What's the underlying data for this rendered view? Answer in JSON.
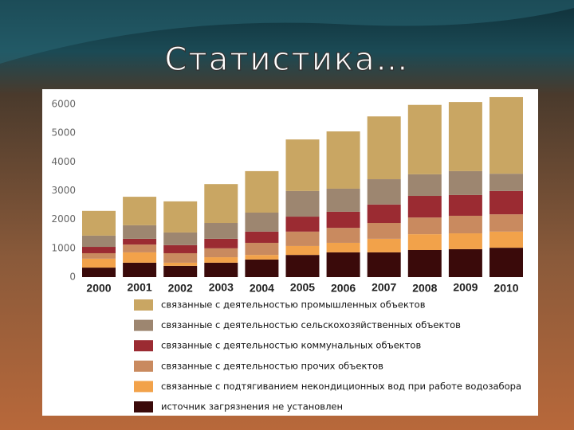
{
  "chart_data": {
    "type": "stacked-bar",
    "title": "Статистика…",
    "categories": [
      "2000",
      "2001",
      "2002",
      "2003",
      "2004",
      "2005",
      "2006",
      "2007",
      "2008",
      "2009",
      "2010"
    ],
    "series": [
      {
        "name": "связанные с деятельностью промышленных объектов",
        "color": "#c9a663",
        "values": [
          860,
          990,
          1080,
          1350,
          1440,
          1790,
          1990,
          2180,
          2410,
          2400,
          2660
        ]
      },
      {
        "name": "связанные с деятельностью сельскохозяйственных объектов",
        "color": "#9d8670",
        "values": [
          390,
          470,
          440,
          550,
          660,
          890,
          800,
          880,
          750,
          830,
          600
        ]
      },
      {
        "name": "связанные с деятельностью коммунальных объектов",
        "color": "#9b2b32",
        "values": [
          220,
          200,
          280,
          330,
          390,
          520,
          560,
          640,
          750,
          720,
          810
        ]
      },
      {
        "name": "связанные с деятельностью прочих объектов",
        "color": "#c98a5f",
        "values": [
          190,
          270,
          330,
          310,
          420,
          500,
          520,
          550,
          580,
          610,
          600
        ]
      },
      {
        "name": "связанные с подтягиванием некондиционных вод при работе водозабора",
        "color": "#f2a24a",
        "values": [
          310,
          360,
          110,
          190,
          160,
          310,
          330,
          470,
          550,
          550,
          560
        ]
      },
      {
        "name": "источник загрязнения не установлен",
        "color": "#3a0a0a",
        "values": [
          330,
          500,
          390,
          500,
          610,
          770,
          860,
          860,
          940,
          970,
          1020
        ]
      }
    ],
    "ylim": [
      0,
      6000
    ],
    "yticks": [
      0,
      1000,
      2000,
      3000,
      4000,
      5000,
      6000
    ],
    "grid": false
  }
}
